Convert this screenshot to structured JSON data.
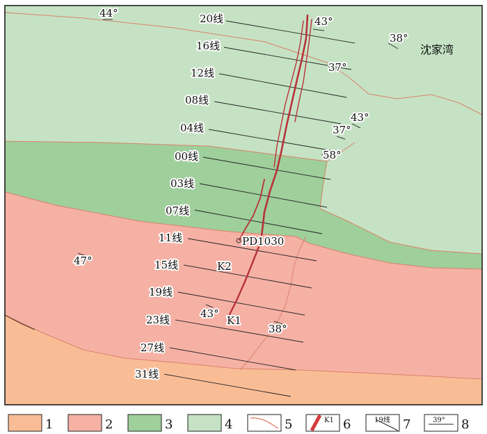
{
  "map": {
    "place_name": "沈家湾",
    "lines": [
      {
        "label": "20线"
      },
      {
        "label": "16线"
      },
      {
        "label": "12线"
      },
      {
        "label": "08线"
      },
      {
        "label": "04线"
      },
      {
        "label": "00线"
      },
      {
        "label": "03线"
      },
      {
        "label": "07线"
      },
      {
        "label": "11线"
      },
      {
        "label": "15线"
      },
      {
        "label": "19线"
      },
      {
        "label": "23线"
      },
      {
        "label": "27线"
      },
      {
        "label": "31线"
      }
    ],
    "dips": [
      "44°",
      "43°",
      "38°",
      "37°",
      "43°",
      "37°",
      "58°",
      "47°",
      "43°",
      "38°"
    ],
    "orebodies": [
      "K1",
      "K2"
    ],
    "adit": "PD1030"
  },
  "legend": [
    {
      "num": "1",
      "color": "#f9bd96"
    },
    {
      "num": "2",
      "color": "#f6b1a5"
    },
    {
      "num": "3",
      "color": "#9fcf9b"
    },
    {
      "num": "4",
      "color": "#c5e3c4"
    },
    {
      "num": "5",
      "color": "#e07a5a"
    },
    {
      "num": "6",
      "sample": "K1",
      "color": "#d43c3c"
    },
    {
      "num": "7",
      "sample": "19线"
    },
    {
      "num": "8",
      "sample": "39°"
    }
  ]
}
